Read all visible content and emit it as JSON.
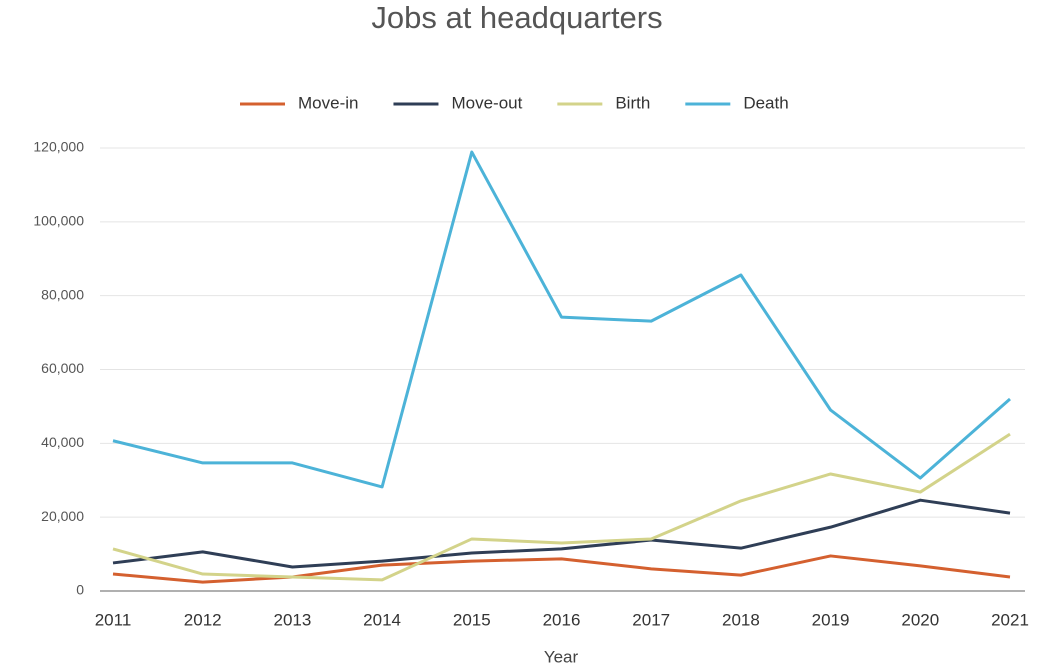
{
  "chart_data": {
    "type": "line",
    "title": "Jobs at headquarters",
    "xlabel": "Year",
    "categories": [
      "2011",
      "2012",
      "2013",
      "2014",
      "2015",
      "2016",
      "2017",
      "2018",
      "2019",
      "2020",
      "2021"
    ],
    "series": [
      {
        "name": "Move-in",
        "color": "#d4602f",
        "values": [
          4600,
          2400,
          3800,
          7000,
          8100,
          8700,
          6000,
          4300,
          9500,
          6800,
          3800
        ]
      },
      {
        "name": "Move-out",
        "color": "#2f3e56",
        "values": [
          7600,
          10600,
          6500,
          8100,
          10300,
          11400,
          13800,
          11600,
          17300,
          24600,
          21100
        ]
      },
      {
        "name": "Birth",
        "color": "#d3d38a",
        "values": [
          11400,
          4600,
          3800,
          3000,
          14100,
          13000,
          14100,
          24400,
          31700,
          26800,
          42500
        ]
      },
      {
        "name": "Death",
        "color": "#4cb3d8",
        "values": [
          40700,
          34700,
          34700,
          28200,
          118900,
          74200,
          73100,
          85600,
          49000,
          30600,
          52000
        ]
      }
    ],
    "ylim": [
      0,
      120000
    ],
    "yticks": [
      0,
      {
        "value": 20000,
        "label": "20,000"
      },
      {
        "value": 40000,
        "label": "40,000"
      },
      {
        "value": 60000,
        "label": "60,000"
      },
      {
        "value": 80000,
        "label": "80,000"
      },
      {
        "value": 100000,
        "label": "100,000"
      },
      {
        "value": 120000,
        "label": "120,000"
      }
    ],
    "grid": true,
    "legend": "top"
  }
}
